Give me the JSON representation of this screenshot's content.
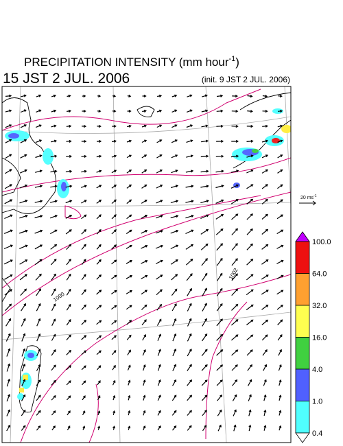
{
  "header": {
    "title": "PRECIPITATION INTENSITY (mm hour",
    "title_sup": "-1",
    "title_end": ")",
    "valid_time": "15 JST 2 JUL. 2006",
    "init_time": "(init. 9 JST 2 JUL. 2006)"
  },
  "wind_scale": {
    "label": "20 ms",
    "sup": "-1"
  },
  "colorbar": {
    "levels": [
      "100.0",
      "64.0",
      "32.0",
      "16.0",
      "4.0",
      "1.0",
      "0.4"
    ]
  },
  "contour_labels": [
    "1000",
    "1002"
  ]
}
